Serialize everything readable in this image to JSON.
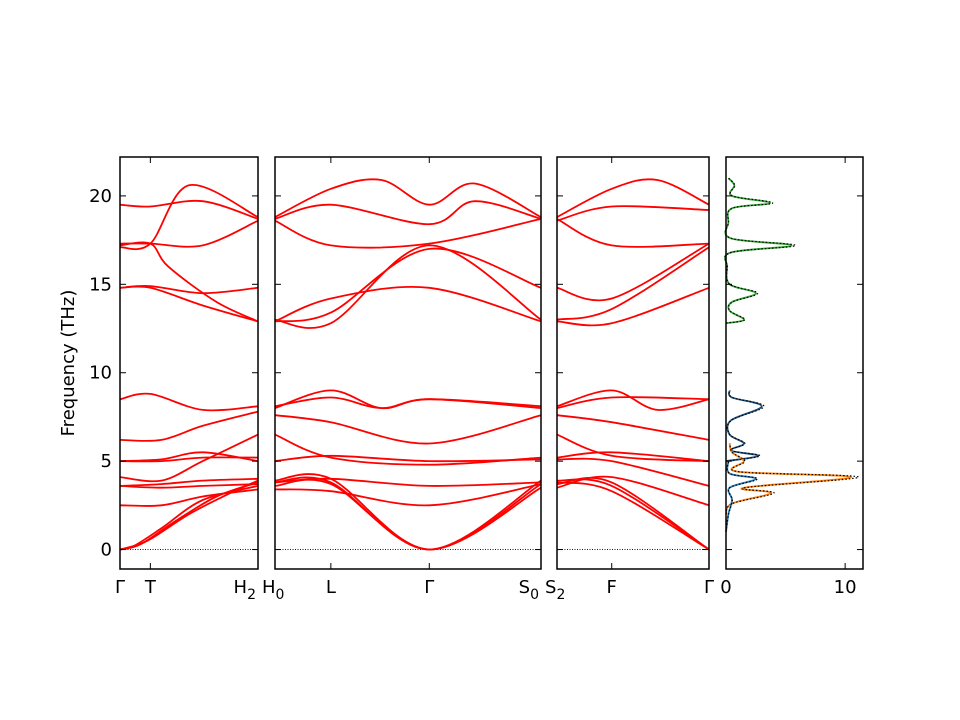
{
  "chart_data": {
    "type": "line",
    "ylabel": "Frequency (THz)",
    "ylim": [
      -1.1,
      22.2
    ],
    "yticks": [
      "0",
      "5",
      "10",
      "15",
      "20"
    ],
    "panels": [
      {
        "name": "segment-1",
        "qlabels": [
          {
            "pos": 0,
            "label": "Γ"
          },
          {
            "pos": 0.22,
            "label": "T"
          },
          {
            "pos": 1,
            "label": "H2|H0"
          }
        ]
      },
      {
        "name": "segment-2",
        "qlabels": [
          {
            "pos": 0.21,
            "label": "L"
          },
          {
            "pos": 0.58,
            "label": "Γ"
          },
          {
            "pos": 1,
            "label": "S0|S2"
          }
        ]
      },
      {
        "name": "segment-3",
        "qlabels": [
          {
            "pos": 0.36,
            "label": "F"
          },
          {
            "pos": 1,
            "label": "Γ"
          }
        ]
      }
    ],
    "bands_segment_1": [
      [
        [
          0,
          0
        ],
        [
          0.1,
          0.2
        ],
        [
          0.3,
          1.2
        ],
        [
          0.6,
          2.8
        ],
        [
          1,
          3.6
        ]
      ],
      [
        [
          0,
          0
        ],
        [
          0.15,
          0.3
        ],
        [
          0.4,
          1.6
        ],
        [
          0.7,
          3.0
        ],
        [
          1,
          3.8
        ]
      ],
      [
        [
          0,
          0
        ],
        [
          0.2,
          0.5
        ],
        [
          0.5,
          2.0
        ],
        [
          0.8,
          3.2
        ],
        [
          1,
          3.9
        ]
      ],
      [
        [
          0,
          2.5
        ],
        [
          0.3,
          2.5
        ],
        [
          0.6,
          3.0
        ],
        [
          1,
          3.4
        ]
      ],
      [
        [
          0,
          3.6
        ],
        [
          0.3,
          3.7
        ],
        [
          0.6,
          3.9
        ],
        [
          1,
          4.0
        ]
      ],
      [
        [
          0,
          3.6
        ],
        [
          0.3,
          3.5
        ],
        [
          0.6,
          3.6
        ],
        [
          1,
          3.7
        ]
      ],
      [
        [
          0,
          4.1
        ],
        [
          0.3,
          3.9
        ],
        [
          0.6,
          5.0
        ],
        [
          1,
          6.5
        ]
      ],
      [
        [
          0,
          5.0
        ],
        [
          0.3,
          5.0
        ],
        [
          0.6,
          5.2
        ],
        [
          1,
          5.2
        ]
      ],
      [
        [
          0,
          5.0
        ],
        [
          0.3,
          5.1
        ],
        [
          0.6,
          5.5
        ],
        [
          1,
          5.0
        ]
      ],
      [
        [
          0,
          6.2
        ],
        [
          0.3,
          6.2
        ],
        [
          0.6,
          7.0
        ],
        [
          1,
          7.8
        ]
      ],
      [
        [
          0,
          8.5
        ],
        [
          0.22,
          8.8
        ],
        [
          0.6,
          7.9
        ],
        [
          1,
          8.1
        ]
      ],
      [
        [
          0,
          14.8
        ],
        [
          0.22,
          14.8
        ],
        [
          0.6,
          13.8
        ],
        [
          1,
          12.9
        ]
      ],
      [
        [
          0,
          14.8
        ],
        [
          0.22,
          14.9
        ],
        [
          0.6,
          14.5
        ],
        [
          1,
          14.8
        ]
      ],
      [
        [
          0,
          17.2
        ],
        [
          0.22,
          17.3
        ],
        [
          0.35,
          16.0
        ],
        [
          0.7,
          14.0
        ],
        [
          1,
          12.9
        ]
      ],
      [
        [
          0,
          17.3
        ],
        [
          0.22,
          17.3
        ],
        [
          0.6,
          17.2
        ],
        [
          1,
          18.6
        ]
      ],
      [
        [
          0,
          17.1
        ],
        [
          0.22,
          17.3
        ],
        [
          0.5,
          20.6
        ],
        [
          1,
          18.8
        ]
      ],
      [
        [
          0,
          19.5
        ],
        [
          0.22,
          19.4
        ],
        [
          0.6,
          19.7
        ],
        [
          1,
          18.7
        ]
      ]
    ],
    "bands_segment_2": [
      [
        [
          0,
          3.6
        ],
        [
          0.21,
          3.7
        ],
        [
          0.58,
          0
        ],
        [
          1,
          3.5
        ]
      ],
      [
        [
          0,
          3.8
        ],
        [
          0.21,
          3.8
        ],
        [
          0.58,
          0
        ],
        [
          1,
          3.9
        ]
      ],
      [
        [
          0,
          3.9
        ],
        [
          0.21,
          4.0
        ],
        [
          0.58,
          0
        ],
        [
          1,
          3.7
        ]
      ],
      [
        [
          0,
          3.4
        ],
        [
          0.21,
          3.3
        ],
        [
          0.58,
          2.5
        ],
        [
          1,
          3.7
        ]
      ],
      [
        [
          0,
          3.8
        ],
        [
          0.21,
          4.0
        ],
        [
          0.58,
          3.6
        ],
        [
          1,
          3.8
        ]
      ],
      [
        [
          0,
          6.5
        ],
        [
          0.21,
          5.2
        ],
        [
          0.58,
          4.8
        ],
        [
          1,
          5.2
        ]
      ],
      [
        [
          0,
          5.0
        ],
        [
          0.21,
          5.3
        ],
        [
          0.58,
          5.0
        ],
        [
          1,
          5.1
        ]
      ],
      [
        [
          0,
          7.6
        ],
        [
          0.21,
          7.2
        ],
        [
          0.58,
          6.0
        ],
        [
          1,
          7.6
        ]
      ],
      [
        [
          0,
          8.1
        ],
        [
          0.21,
          8.6
        ],
        [
          0.4,
          8.0
        ],
        [
          0.58,
          8.5
        ],
        [
          1,
          8.1
        ]
      ],
      [
        [
          0,
          8.0
        ],
        [
          0.21,
          9.0
        ],
        [
          0.4,
          8.0
        ],
        [
          0.58,
          8.5
        ],
        [
          1,
          8.0
        ]
      ],
      [
        [
          0,
          12.9
        ],
        [
          0.21,
          14.2
        ],
        [
          0.58,
          14.8
        ],
        [
          1,
          12.9
        ]
      ],
      [
        [
          0,
          12.9
        ],
        [
          0.21,
          13.4
        ],
        [
          0.58,
          17.0
        ],
        [
          1,
          14.8
        ]
      ],
      [
        [
          0,
          13.0
        ],
        [
          0.21,
          12.8
        ],
        [
          0.58,
          17.2
        ],
        [
          1,
          13.0
        ]
      ],
      [
        [
          0,
          18.6
        ],
        [
          0.21,
          17.2
        ],
        [
          0.58,
          17.3
        ],
        [
          1,
          18.7
        ]
      ],
      [
        [
          0,
          18.8
        ],
        [
          0.21,
          20.4
        ],
        [
          0.4,
          20.9
        ],
        [
          0.58,
          19.5
        ],
        [
          0.75,
          20.7
        ],
        [
          1,
          18.8
        ]
      ],
      [
        [
          0,
          18.7
        ],
        [
          0.21,
          19.5
        ],
        [
          0.58,
          18.4
        ],
        [
          0.75,
          19.7
        ],
        [
          1,
          18.7
        ]
      ]
    ],
    "bands_segment_3": [
      [
        [
          0,
          3.7
        ],
        [
          0.36,
          3.8
        ],
        [
          1,
          0
        ]
      ],
      [
        [
          0,
          3.9
        ],
        [
          0.36,
          3.6
        ],
        [
          1,
          0
        ]
      ],
      [
        [
          0,
          3.8
        ],
        [
          0.36,
          3.3
        ],
        [
          1,
          0
        ]
      ],
      [
        [
          0,
          3.5
        ],
        [
          0.36,
          4.1
        ],
        [
          1,
          2.5
        ]
      ],
      [
        [
          0,
          5.1
        ],
        [
          0.36,
          5.0
        ],
        [
          1,
          3.6
        ]
      ],
      [
        [
          0,
          6.5
        ],
        [
          0.36,
          5.3
        ],
        [
          1,
          5.0
        ]
      ],
      [
        [
          0,
          5.2
        ],
        [
          0.36,
          5.5
        ],
        [
          1,
          5.0
        ]
      ],
      [
        [
          0,
          7.6
        ],
        [
          0.36,
          7.2
        ],
        [
          1,
          6.2
        ]
      ],
      [
        [
          0,
          8.1
        ],
        [
          0.36,
          9.0
        ],
        [
          0.66,
          7.9
        ],
        [
          1,
          8.5
        ]
      ],
      [
        [
          0,
          8.0
        ],
        [
          0.36,
          8.6
        ],
        [
          1,
          8.5
        ]
      ],
      [
        [
          0,
          12.9
        ],
        [
          0.36,
          12.8
        ],
        [
          1,
          14.8
        ]
      ],
      [
        [
          0,
          14.8
        ],
        [
          0.36,
          14.2
        ],
        [
          1,
          17.3
        ]
      ],
      [
        [
          0,
          13.0
        ],
        [
          0.36,
          13.6
        ],
        [
          1,
          17.1
        ]
      ],
      [
        [
          0,
          18.7
        ],
        [
          0.36,
          17.2
        ],
        [
          1,
          17.3
        ]
      ],
      [
        [
          0,
          18.8
        ],
        [
          0.36,
          20.4
        ],
        [
          0.66,
          20.9
        ],
        [
          1,
          19.5
        ]
      ],
      [
        [
          0,
          18.6
        ],
        [
          0.36,
          19.4
        ],
        [
          1,
          19.2
        ]
      ]
    ],
    "dos": {
      "xticks": [
        "0",
        "10"
      ],
      "xlim": [
        0,
        11.5
      ],
      "series": [
        {
          "color": "#2ca02c",
          "points": [
            [
              0,
              12.8
            ],
            [
              1.5,
              13.0
            ],
            [
              0.3,
              13.5
            ],
            [
              0.5,
              14.0
            ],
            [
              2.5,
              14.5
            ],
            [
              0.3,
              15.0
            ],
            [
              0.1,
              16.0
            ],
            [
              0.4,
              16.8
            ],
            [
              5.5,
              17.2
            ],
            [
              0.4,
              17.6
            ],
            [
              0.2,
              18.5
            ],
            [
              0.5,
              19.3
            ],
            [
              3.7,
              19.6
            ],
            [
              0.5,
              20.0
            ],
            [
              0.7,
              20.6
            ],
            [
              0.2,
              21.0
            ]
          ]
        },
        {
          "color": "#1f4e79",
          "points": [
            [
              0,
              5.0
            ],
            [
              2.7,
              5.3
            ],
            [
              0.4,
              5.6
            ],
            [
              1.5,
              6.0
            ],
            [
              0.3,
              6.5
            ],
            [
              0.4,
              7.3
            ],
            [
              3.0,
              8.1
            ],
            [
              0.5,
              8.6
            ],
            [
              0.3,
              9.0
            ]
          ]
        },
        {
          "color": "#ff7f0e",
          "points": [
            [
              0,
              2.0
            ],
            [
              0.5,
              2.6
            ],
            [
              3.8,
              3.2
            ],
            [
              1.5,
              3.5
            ],
            [
              10.5,
              4.1
            ],
            [
              1.0,
              4.4
            ],
            [
              1.5,
              5.0
            ],
            [
              0.5,
              5.5
            ],
            [
              0.3,
              6.0
            ]
          ]
        },
        {
          "color": "#1f77b4",
          "points": [
            [
              0,
              1.0
            ],
            [
              0.2,
              2.0
            ],
            [
              0.5,
              2.8
            ],
            [
              0.3,
              3.5
            ],
            [
              2.5,
              4.0
            ],
            [
              0.3,
              4.3
            ],
            [
              0.2,
              5.0
            ]
          ]
        }
      ]
    }
  }
}
